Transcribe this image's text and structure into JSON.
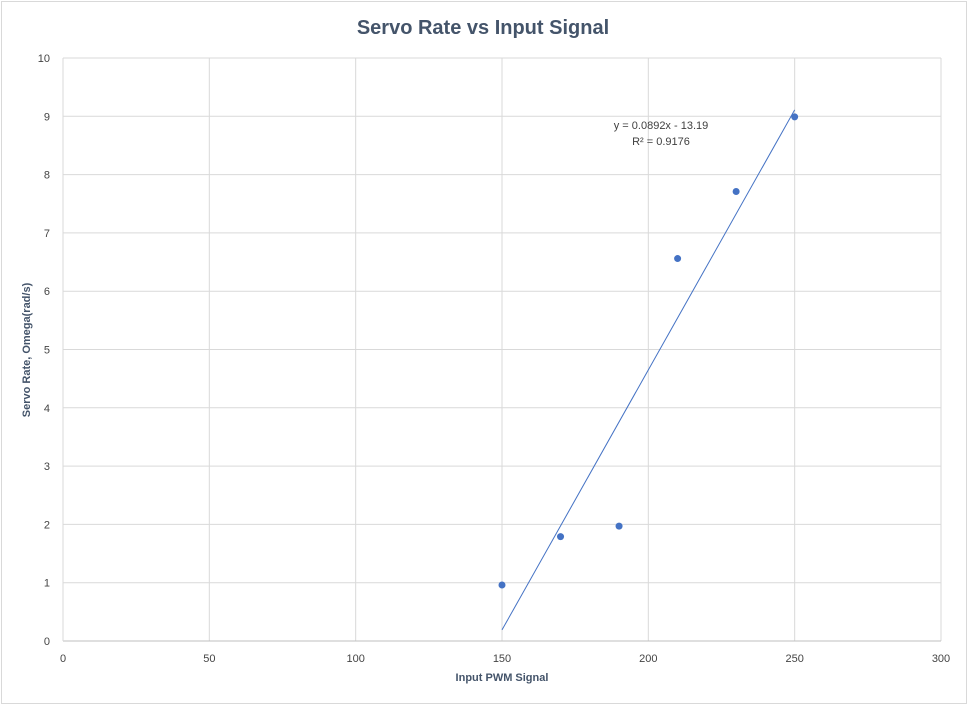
{
  "chart_data": {
    "type": "scatter",
    "title": "Servo Rate vs Input Signal",
    "xlabel": "Input PWM Signal",
    "ylabel": "Servo Rate, Omega(rad/s)",
    "xlim": [
      0,
      300
    ],
    "ylim": [
      0,
      10
    ],
    "x_ticks": [
      "0",
      "50",
      "100",
      "150",
      "200",
      "250",
      "300"
    ],
    "y_ticks": [
      "0",
      "1",
      "2",
      "3",
      "4",
      "5",
      "6",
      "7",
      "8",
      "9",
      "10"
    ],
    "grid": true,
    "marker_color": "#4472c4",
    "series": [
      {
        "x": [
          150,
          170,
          190,
          210,
          230,
          250
        ],
        "y": [
          0.96,
          1.79,
          1.97,
          6.56,
          7.71,
          8.99
        ]
      }
    ],
    "trendline": {
      "slope": 0.0892,
      "intercept": -13.19,
      "x_range": [
        150,
        250
      ],
      "equation": "y = 0.0892x - 13.19",
      "r_squared_label": "R² = 0.9176"
    }
  }
}
